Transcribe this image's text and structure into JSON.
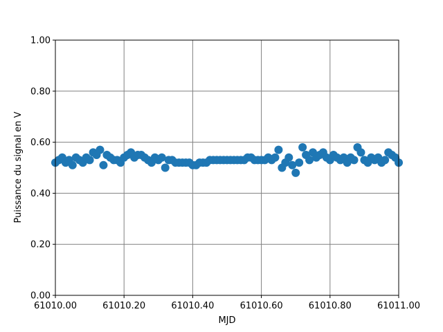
{
  "chart_data": {
    "type": "scatter",
    "xlabel": "MJD",
    "ylabel": "Puissance du signal en V",
    "color": "#1f77b4",
    "grid": true,
    "xlim": [
      61010,
      61011
    ],
    "ylim": [
      0,
      1
    ],
    "xticks": [
      {
        "value": 61010,
        "label": "61010.00"
      },
      {
        "value": 61010.2,
        "label": "61010.20"
      },
      {
        "value": 61010.4,
        "label": "61010.40"
      },
      {
        "value": 61010.6,
        "label": "61010.60"
      },
      {
        "value": 61010.8,
        "label": "61010.80"
      },
      {
        "value": 61011,
        "label": "61011.00"
      }
    ],
    "yticks": [
      {
        "value": 0,
        "label": "0.00"
      },
      {
        "value": 0.2,
        "label": "0.20"
      },
      {
        "value": 0.4,
        "label": "0.40"
      },
      {
        "value": 0.6,
        "label": "0.60"
      },
      {
        "value": 0.8,
        "label": "0.80"
      },
      {
        "value": 1,
        "label": "1.00"
      }
    ],
    "x": [
      61010,
      61010.01,
      61010.02,
      61010.03,
      61010.04,
      61010.05,
      61010.06,
      61010.07,
      61010.08,
      61010.09,
      61010.1,
      61010.11,
      61010.12,
      61010.13,
      61010.14,
      61010.15,
      61010.16,
      61010.17,
      61010.18,
      61010.19,
      61010.2,
      61010.21,
      61010.22,
      61010.23,
      61010.24,
      61010.25,
      61010.26,
      61010.27,
      61010.28,
      61010.29,
      61010.3,
      61010.31,
      61010.32,
      61010.33,
      61010.34,
      61010.35,
      61010.36,
      61010.37,
      61010.38,
      61010.39,
      61010.4,
      61010.41,
      61010.42,
      61010.43,
      61010.44,
      61010.45,
      61010.46,
      61010.47,
      61010.48,
      61010.49,
      61010.5,
      61010.51,
      61010.52,
      61010.53,
      61010.54,
      61010.55,
      61010.56,
      61010.57,
      61010.58,
      61010.59,
      61010.6,
      61010.61,
      61010.62,
      61010.63,
      61010.64,
      61010.65,
      61010.66,
      61010.67,
      61010.68,
      61010.69,
      61010.7,
      61010.71,
      61010.72,
      61010.73,
      61010.74,
      61010.75,
      61010.76,
      61010.77,
      61010.78,
      61010.79,
      61010.8,
      61010.81,
      61010.82,
      61010.83,
      61010.84,
      61010.85,
      61010.86,
      61010.87,
      61010.88,
      61010.89,
      61010.9,
      61010.91,
      61010.92,
      61010.93,
      61010.94,
      61010.95,
      61010.96,
      61010.97,
      61010.98,
      61010.99,
      61011
    ],
    "values": [
      0.52,
      0.53,
      0.54,
      0.52,
      0.53,
      0.51,
      0.54,
      0.53,
      0.52,
      0.54,
      0.53,
      0.56,
      0.55,
      0.57,
      0.51,
      0.55,
      0.54,
      0.53,
      0.53,
      0.52,
      0.54,
      0.55,
      0.56,
      0.54,
      0.55,
      0.55,
      0.54,
      0.53,
      0.52,
      0.54,
      0.53,
      0.54,
      0.5,
      0.53,
      0.53,
      0.52,
      0.52,
      0.52,
      0.52,
      0.52,
      0.51,
      0.51,
      0.52,
      0.52,
      0.52,
      0.53,
      0.53,
      0.53,
      0.53,
      0.53,
      0.53,
      0.53,
      0.53,
      0.53,
      0.53,
      0.53,
      0.54,
      0.54,
      0.53,
      0.53,
      0.53,
      0.53,
      0.54,
      0.53,
      0.54,
      0.57,
      0.5,
      0.52,
      0.54,
      0.51,
      0.48,
      0.52,
      0.58,
      0.55,
      0.53,
      0.56,
      0.54,
      0.55,
      0.56,
      0.54,
      0.53,
      0.55,
      0.54,
      0.53,
      0.54,
      0.52,
      0.54,
      0.53,
      0.58,
      0.56,
      0.53,
      0.52,
      0.54,
      0.53,
      0.54,
      0.52,
      0.53,
      0.56,
      0.55,
      0.54,
      0.52
    ]
  }
}
